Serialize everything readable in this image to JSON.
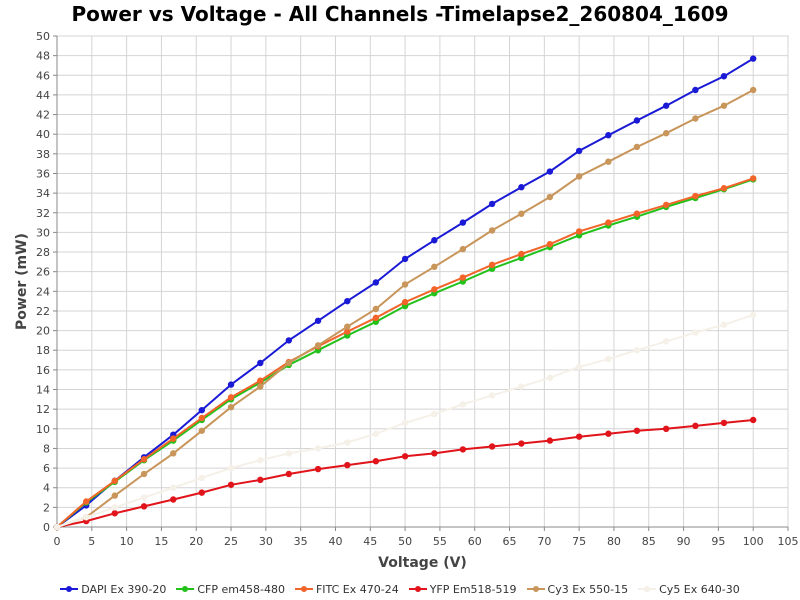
{
  "title": "Power vs Voltage - All Channels -Timelapse2_260804_1609",
  "chart_data": {
    "type": "line",
    "title": "Power vs Voltage - All Channels -Timelapse2_260804_1609",
    "xlabel": "Voltage (V)",
    "ylabel": "Power (mW)",
    "xlim": [
      0,
      105
    ],
    "ylim": [
      0,
      50
    ],
    "xticks": [
      0,
      5,
      10,
      15,
      20,
      25,
      30,
      35,
      40,
      45,
      50,
      55,
      60,
      65,
      70,
      75,
      80,
      85,
      90,
      95,
      100,
      105
    ],
    "yticks": [
      0,
      2,
      4,
      6,
      8,
      10,
      12,
      14,
      16,
      18,
      20,
      22,
      24,
      26,
      28,
      30,
      32,
      34,
      36,
      38,
      40,
      42,
      44,
      46,
      48,
      50
    ],
    "grid": true,
    "legend_position": "bottom",
    "x": [
      0,
      4.2,
      8.3,
      12.5,
      16.7,
      20.8,
      25,
      29.2,
      33.3,
      37.5,
      41.7,
      45.8,
      50,
      54.2,
      58.3,
      62.5,
      66.7,
      70.8,
      75,
      79.2,
      83.3,
      87.5,
      91.7,
      95.8,
      100
    ],
    "series": [
      {
        "name": "DAPI Ex 390-20",
        "color": "#1a1ad6",
        "values": [
          0,
          2.2,
          4.7,
          7.1,
          9.4,
          11.9,
          14.5,
          16.7,
          19.0,
          21.0,
          23.0,
          24.9,
          27.3,
          29.2,
          31.0,
          32.9,
          34.6,
          36.2,
          38.3,
          39.9,
          41.4,
          42.9,
          44.5,
          45.9,
          47.7
        ]
      },
      {
        "name": "CFP em458-480",
        "color": "#22c21a",
        "values": [
          0,
          2.5,
          4.6,
          6.8,
          8.8,
          10.9,
          13.0,
          14.7,
          16.5,
          18.0,
          19.5,
          20.9,
          22.5,
          23.8,
          25.0,
          26.3,
          27.4,
          28.5,
          29.7,
          30.7,
          31.6,
          32.6,
          33.5,
          34.4,
          35.4
        ]
      },
      {
        "name": "FITC Ex 470-24",
        "color": "#f2642a",
        "values": [
          0,
          2.6,
          4.7,
          6.9,
          9.0,
          11.1,
          13.2,
          14.9,
          16.8,
          18.4,
          19.9,
          21.3,
          22.9,
          24.2,
          25.4,
          26.7,
          27.8,
          28.8,
          30.1,
          31.0,
          31.9,
          32.8,
          33.7,
          34.5,
          35.5
        ]
      },
      {
        "name": "YFP Em518-519",
        "color": "#e0141a",
        "values": [
          0,
          0.6,
          1.4,
          2.1,
          2.8,
          3.5,
          4.3,
          4.8,
          5.4,
          5.9,
          6.3,
          6.7,
          7.2,
          7.5,
          7.9,
          8.2,
          8.5,
          8.8,
          9.2,
          9.5,
          9.8,
          10.0,
          10.3,
          10.6,
          10.9
        ]
      },
      {
        "name": "Cy3 Ex 550-15",
        "color": "#c8955a",
        "values": [
          0,
          1.0,
          3.2,
          5.4,
          7.5,
          9.8,
          12.2,
          14.3,
          16.7,
          18.5,
          20.4,
          22.2,
          24.7,
          26.5,
          28.3,
          30.2,
          31.9,
          33.6,
          35.7,
          37.2,
          38.7,
          40.1,
          41.6,
          42.9,
          44.5
        ]
      },
      {
        "name": "Cy5 Ex 640-30",
        "color": "#f5f0e8",
        "values": [
          0,
          1.0,
          2.0,
          3.0,
          4.0,
          5.0,
          6.0,
          6.8,
          7.5,
          8.0,
          8.6,
          9.5,
          10.6,
          11.5,
          12.5,
          13.4,
          14.3,
          15.2,
          16.3,
          17.1,
          18.0,
          18.9,
          19.8,
          20.6,
          21.6
        ]
      }
    ]
  }
}
